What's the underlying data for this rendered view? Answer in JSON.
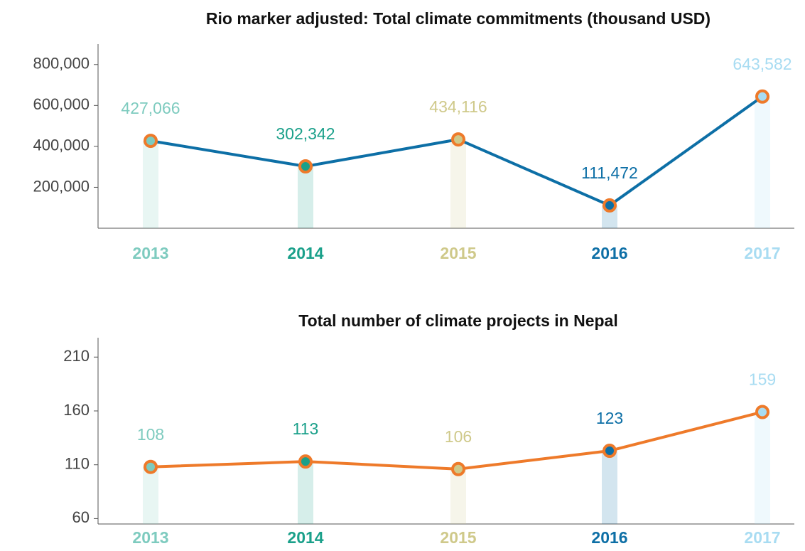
{
  "chart_data": [
    {
      "type": "line",
      "title": "Rio marker adjusted: Total climate commitments (thousand USD)",
      "categories": [
        "2013",
        "2014",
        "2015",
        "2016",
        "2017"
      ],
      "values": [
        427066,
        302342,
        434116,
        111472,
        643582
      ],
      "value_labels": [
        "427,066",
        "302,342",
        "434,116",
        "111,472",
        "643,582"
      ],
      "color": "#0d6fa6",
      "marker_color": "#ee7a2a",
      "category_colors": [
        "#7ecbbf",
        "#1aa08a",
        "#cfc98a",
        "#0d6fa6",
        "#a8dcf2"
      ],
      "ylim": [
        0,
        900000
      ],
      "yticks": [
        {
          "value": 200000,
          "label": "200,000"
        },
        {
          "value": 400000,
          "label": "400,000"
        },
        {
          "value": 600000,
          "label": "600,000"
        },
        {
          "value": 800000,
          "label": "800,000"
        }
      ]
    },
    {
      "type": "line",
      "title": "Total number of climate projects in Nepal",
      "categories": [
        "2013",
        "2014",
        "2015",
        "2016",
        "2017"
      ],
      "values": [
        108,
        113,
        106,
        123,
        159
      ],
      "color": "#ee7a2a",
      "marker_color": "#ee7a2a",
      "category_colors": [
        "#7ecbbf",
        "#1aa08a",
        "#cfc98a",
        "#0d6fa6",
        "#a8dcf2"
      ],
      "ylim": [
        55,
        228
      ],
      "yticks": [
        60,
        110,
        160,
        210
      ]
    }
  ]
}
